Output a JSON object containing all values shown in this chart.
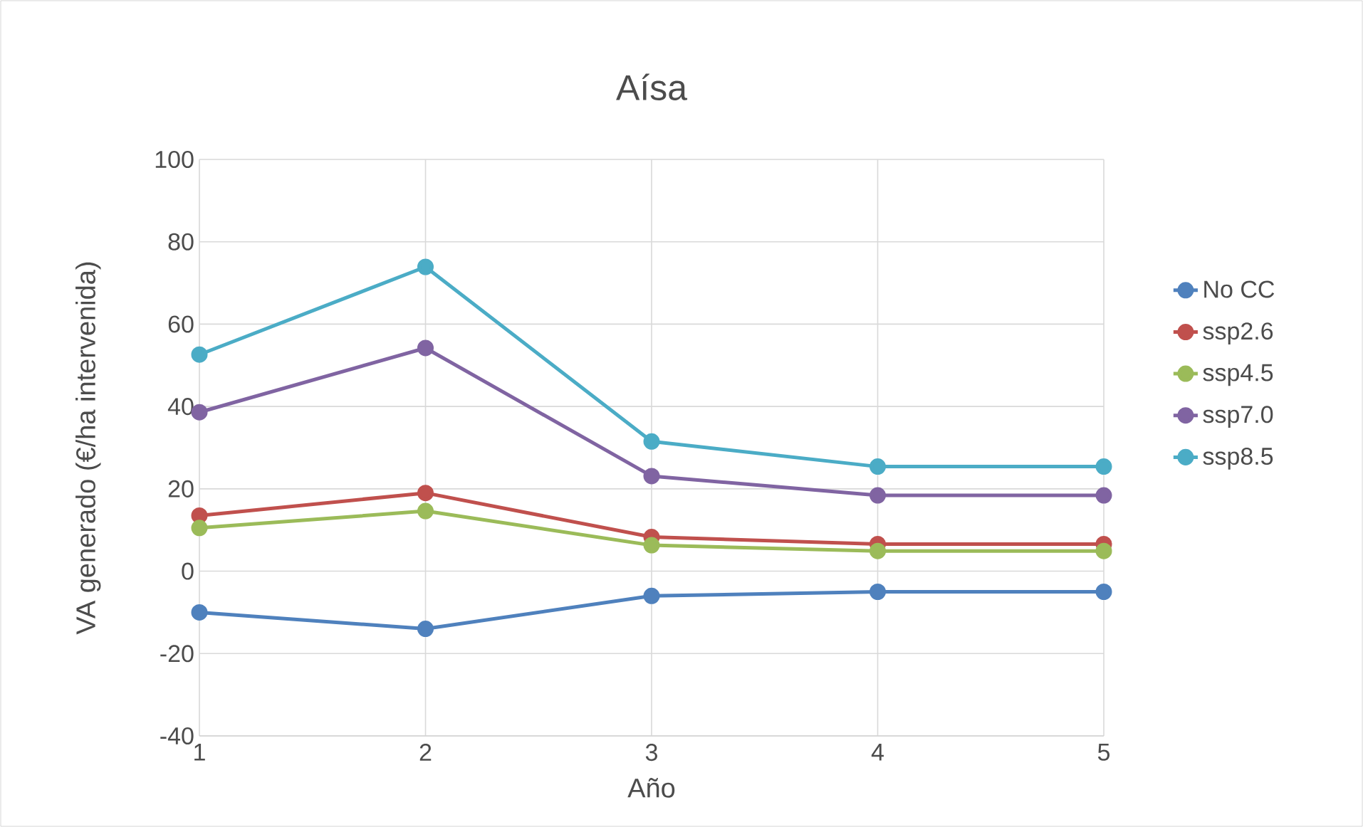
{
  "chart_data": {
    "type": "line",
    "title": "Aísa",
    "xlabel": "Año",
    "ylabel": "VA generado (€/ha intervenida)",
    "categories": [
      "1",
      "2",
      "3",
      "4",
      "5"
    ],
    "ylim": [
      -40,
      100
    ],
    "yticks": [
      -40,
      -20,
      0,
      20,
      40,
      60,
      80,
      100
    ],
    "grid": true,
    "legend": "right",
    "marker": "circle",
    "line_style": "solid",
    "series": [
      {
        "name": "No CC",
        "color": "#4f81bd",
        "values": [
          -10,
          -14,
          -6,
          -5,
          -5
        ]
      },
      {
        "name": "ssp2.6",
        "color": "#c0504d",
        "values": [
          13.5,
          19,
          8.3,
          6.6,
          6.6
        ]
      },
      {
        "name": "ssp4.5",
        "color": "#9bbb59",
        "values": [
          10.5,
          14.6,
          6.3,
          4.9,
          4.9
        ]
      },
      {
        "name": "ssp7.0",
        "color": "#8064a2",
        "values": [
          38.6,
          54.2,
          23.1,
          18.4,
          18.4
        ]
      },
      {
        "name": "ssp8.5",
        "color": "#4bacc6",
        "values": [
          52.6,
          73.9,
          31.5,
          25.4,
          25.4
        ]
      }
    ]
  }
}
